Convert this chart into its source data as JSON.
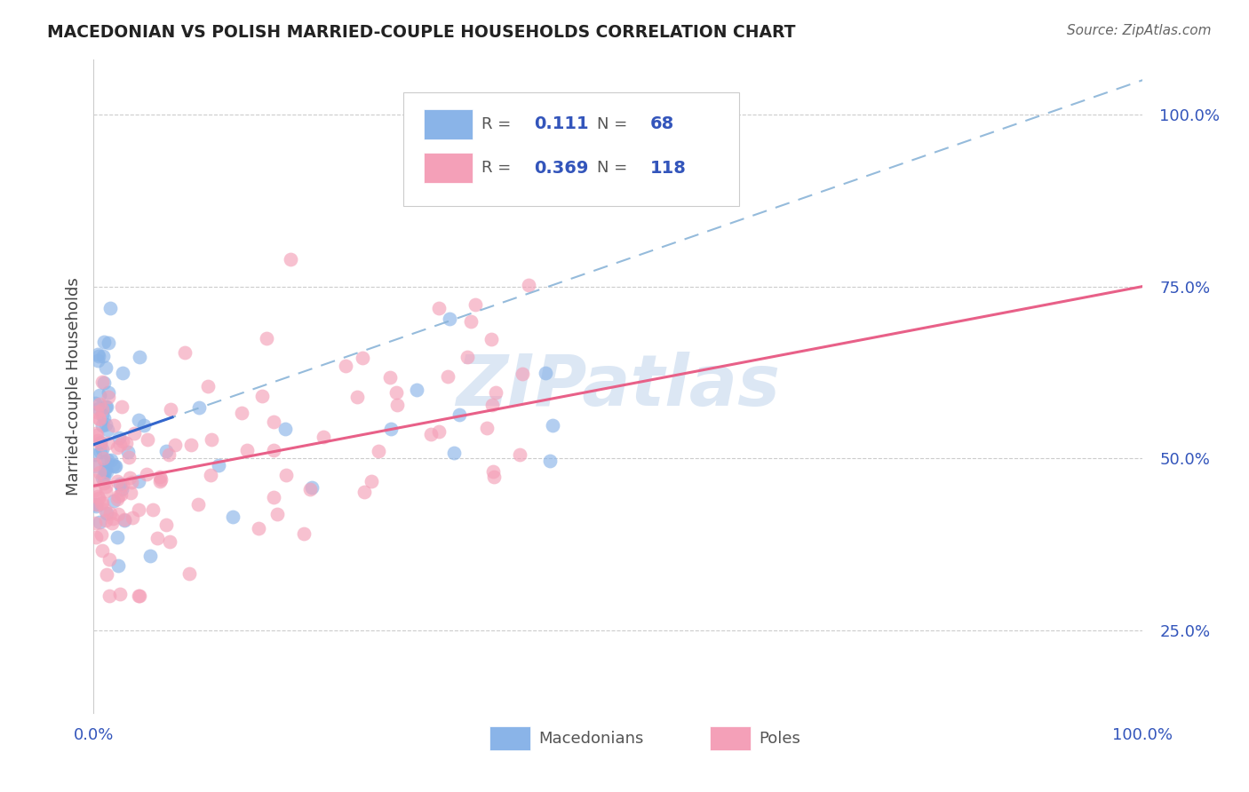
{
  "title": "MACEDONIAN VS POLISH MARRIED-COUPLE HOUSEHOLDS CORRELATION CHART",
  "source": "Source: ZipAtlas.com",
  "ylabel": "Married-couple Households",
  "xlim": [
    0,
    1.0
  ],
  "ylim": [
    0.13,
    1.08
  ],
  "xtick_labels": [
    "0.0%",
    "100.0%"
  ],
  "ytick_labels": [
    "25.0%",
    "50.0%",
    "75.0%",
    "100.0%"
  ],
  "ytick_positions": [
    0.25,
    0.5,
    0.75,
    1.0
  ],
  "legend_r_mac": "0.111",
  "legend_n_mac": "68",
  "legend_r_pol": "0.369",
  "legend_n_pol": "118",
  "mac_color": "#8ab4e8",
  "pol_color": "#f4a0b8",
  "mac_line_color": "#3366cc",
  "pol_line_color": "#e86088",
  "mac_dash_color": "#8ab4d8",
  "watermark_color": "#c5d8ee",
  "background_color": "#ffffff",
  "grid_color": "#cccccc",
  "title_color": "#222222",
  "value_color": "#3355bb",
  "label_color": "#444444"
}
